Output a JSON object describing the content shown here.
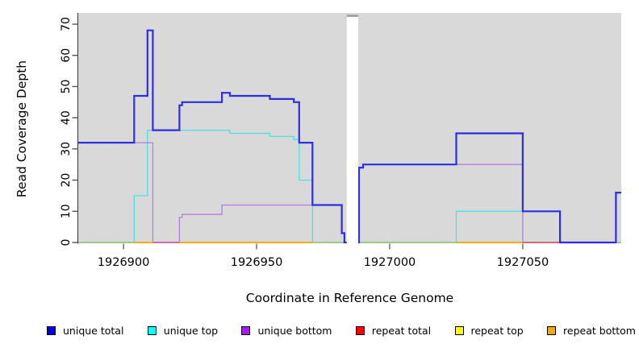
{
  "chart_data": {
    "type": "line",
    "subtype": "step",
    "title": "",
    "xlabel": "Coordinate in Reference Genome",
    "ylabel": "Read Coverage Depth",
    "xlim": [
      1926883,
      1927087
    ],
    "ylim": [
      0,
      73
    ],
    "x_ticks": [
      "1926900",
      "1926950",
      "1927000",
      "1927050"
    ],
    "x_tick_values": [
      1926900,
      1926950,
      1927000,
      1927050
    ],
    "y_ticks": [
      0,
      10,
      20,
      30,
      40,
      50,
      60,
      70
    ],
    "plot_bg": "#d9d9d9",
    "grid": "off",
    "legend_position": "bottom",
    "gap": {
      "x_start": 1926983.4,
      "x_end": 1926988.5,
      "fill": "#ffffff",
      "cap_color": "#9a9a9a"
    },
    "series": [
      {
        "name": "unique total",
        "color": "#0000EE",
        "line_color": "#2E2EE0",
        "width": 2.2,
        "steps": [
          [
            1926883,
            32
          ],
          [
            1926904,
            47
          ],
          [
            1926909,
            68
          ],
          [
            1926911,
            36
          ],
          [
            1926921,
            44
          ],
          [
            1926922,
            45
          ],
          [
            1926937,
            48
          ],
          [
            1926940,
            47
          ],
          [
            1926955,
            46
          ],
          [
            1926964,
            45
          ],
          [
            1926966,
            32
          ],
          [
            1926971,
            12
          ],
          [
            1926982,
            3
          ],
          [
            1926983,
            0
          ],
          [
            1926988.5,
            24
          ],
          [
            1926990,
            25
          ],
          [
            1927025,
            35
          ],
          [
            1927050,
            10
          ],
          [
            1927064,
            0
          ],
          [
            1927085,
            16
          ],
          [
            1927087,
            16
          ]
        ]
      },
      {
        "name": "unique top",
        "color": "#00FFFF",
        "line_color": "#4FE0E4",
        "width": 1.3,
        "steps": [
          [
            1926883,
            0
          ],
          [
            1926904,
            15
          ],
          [
            1926909,
            36
          ],
          [
            1926940,
            35
          ],
          [
            1926955,
            34
          ],
          [
            1926964,
            33
          ],
          [
            1926966,
            20
          ],
          [
            1926971,
            0
          ],
          [
            1927025,
            10
          ],
          [
            1927064,
            0
          ],
          [
            1927087,
            0
          ]
        ]
      },
      {
        "name": "unique bottom",
        "color": "#A020F0",
        "line_color": "#B37EDC",
        "width": 1.3,
        "steps": [
          [
            1926883,
            32
          ],
          [
            1926911,
            0
          ],
          [
            1926921,
            8
          ],
          [
            1926922,
            9
          ],
          [
            1926937,
            12
          ],
          [
            1926982,
            3
          ],
          [
            1926983,
            0
          ],
          [
            1926988.5,
            24
          ],
          [
            1926990,
            25
          ],
          [
            1927050,
            0
          ],
          [
            1927085,
            16
          ],
          [
            1927087,
            16
          ]
        ]
      },
      {
        "name": "repeat total",
        "color": "#FF0000",
        "line_color": "#E03030",
        "width": 1.3,
        "steps": [
          [
            1926883,
            0
          ],
          [
            1927087,
            0
          ]
        ]
      },
      {
        "name": "repeat top",
        "color": "#FFFF00",
        "line_color": "#F0F000",
        "width": 1.3,
        "steps": [
          [
            1926883,
            0
          ],
          [
            1927087,
            0
          ]
        ]
      },
      {
        "name": "repeat bottom",
        "color": "#FFA500",
        "line_color": "#FFA500",
        "width": 1.3,
        "steps": [
          [
            1926883,
            0
          ],
          [
            1927087,
            0
          ]
        ]
      }
    ],
    "zero_line_segments": [
      {
        "x": [
          1926883,
          1926904
        ],
        "color": "#8CCD8C"
      },
      {
        "x": [
          1926904,
          1926911
        ],
        "color": "#FFA500"
      },
      {
        "x": [
          1926911,
          1926921
        ],
        "color": "#C65CC6"
      },
      {
        "x": [
          1926921,
          1926971
        ],
        "color": "#FFA500"
      },
      {
        "x": [
          1926971,
          1926983.4
        ],
        "color": "#8CCD8C"
      },
      {
        "x": [
          1926988.5,
          1927025
        ],
        "color": "#8CCD8C"
      },
      {
        "x": [
          1927025,
          1927050
        ],
        "color": "#FFA500"
      },
      {
        "x": [
          1927050,
          1927064
        ],
        "color": "#D2527A"
      },
      {
        "x": [
          1927085,
          1927087
        ],
        "color": "#8CCD8C"
      }
    ]
  },
  "legend": {
    "items": [
      {
        "label": "unique total",
        "color": "#0000EE"
      },
      {
        "label": "unique top",
        "color": "#00FFFF"
      },
      {
        "label": "unique bottom",
        "color": "#A020F0"
      },
      {
        "label": "repeat total",
        "color": "#FF0000"
      },
      {
        "label": "repeat top",
        "color": "#FFFF00"
      },
      {
        "label": "repeat bottom",
        "color": "#FFA500"
      }
    ]
  }
}
